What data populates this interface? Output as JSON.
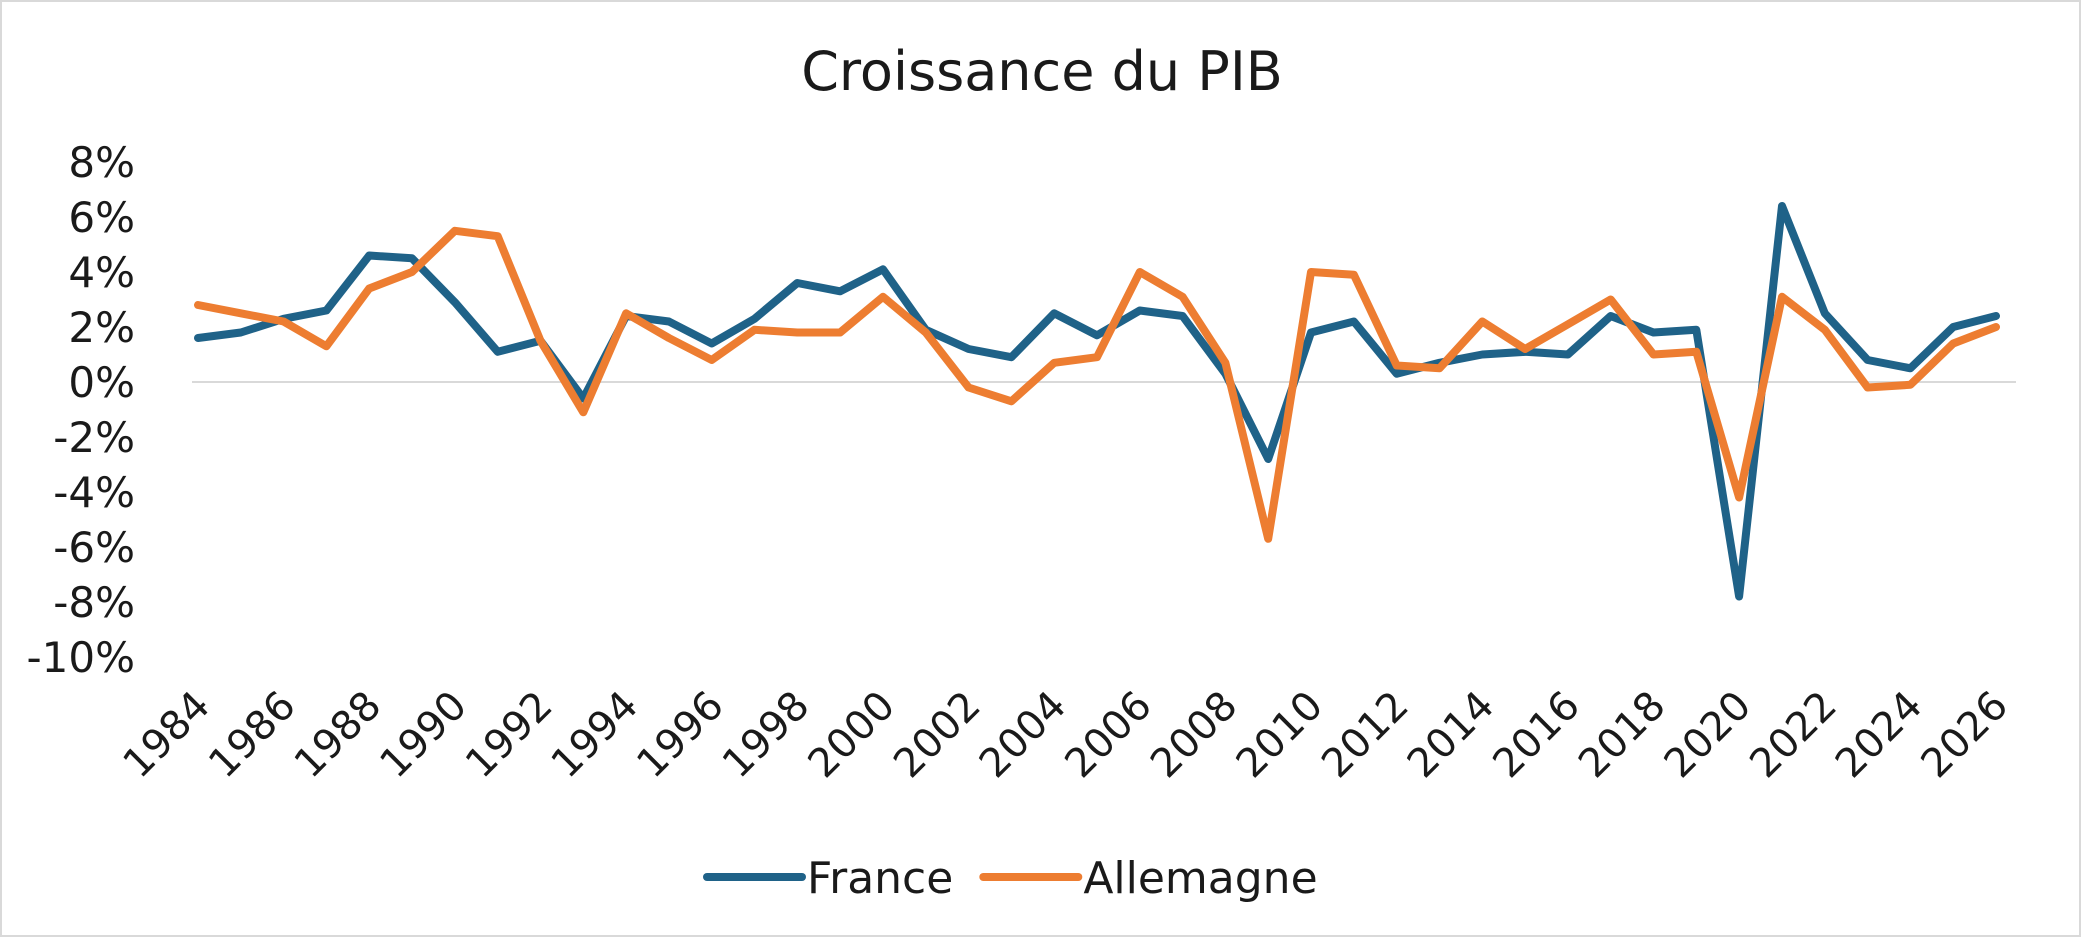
{
  "chart_data": {
    "type": "line",
    "title": "Croissance du PIB",
    "xlabel": "",
    "ylabel": "",
    "x": [
      1984,
      1985,
      1986,
      1987,
      1988,
      1989,
      1990,
      1991,
      1992,
      1993,
      1994,
      1995,
      1996,
      1997,
      1998,
      1999,
      2000,
      2001,
      2002,
      2003,
      2004,
      2005,
      2006,
      2007,
      2008,
      2009,
      2010,
      2011,
      2012,
      2013,
      2014,
      2015,
      2016,
      2017,
      2018,
      2019,
      2020,
      2021,
      2022,
      2023,
      2024,
      2025,
      2026
    ],
    "x_tick_labels": [
      "1984",
      "1986",
      "1988",
      "1990",
      "1992",
      "1994",
      "1996",
      "1998",
      "2000",
      "2002",
      "2004",
      "2006",
      "2008",
      "2010",
      "2012",
      "2014",
      "2016",
      "2018",
      "2020",
      "2022",
      "2024",
      "2026"
    ],
    "y_tick_labels": [
      "8%",
      "6%",
      "4%",
      "2%",
      "0%",
      "-2%",
      "-4%",
      "-6%",
      "-8%",
      "-10%"
    ],
    "y_ticks": [
      8,
      6,
      4,
      2,
      0,
      -2,
      -4,
      -6,
      -8,
      -10
    ],
    "ylim": [
      -10,
      8
    ],
    "xlim": [
      1984,
      2026
    ],
    "grid": false,
    "zero_line": true,
    "legend_position": "bottom",
    "series": [
      {
        "name": "France",
        "color": "#1f6288",
        "values": [
          1.6,
          1.8,
          2.3,
          2.6,
          4.6,
          4.5,
          2.9,
          1.1,
          1.5,
          -0.6,
          2.4,
          2.2,
          1.4,
          2.3,
          3.6,
          3.3,
          4.1,
          1.9,
          1.2,
          0.9,
          2.5,
          1.7,
          2.6,
          2.4,
          0.3,
          -2.8,
          1.8,
          2.2,
          0.3,
          0.7,
          1.0,
          1.1,
          1.0,
          2.4,
          1.8,
          1.9,
          -7.8,
          6.4,
          2.5,
          0.8,
          0.5,
          2.0,
          2.4
        ]
      },
      {
        "name": "Allemagne",
        "color": "#ed7d31",
        "values": [
          2.8,
          2.5,
          2.2,
          1.3,
          3.4,
          4.0,
          5.5,
          5.3,
          1.5,
          -1.1,
          2.5,
          1.6,
          0.8,
          1.9,
          1.8,
          1.8,
          3.1,
          1.8,
          -0.2,
          -0.7,
          0.7,
          0.9,
          4.0,
          3.1,
          0.7,
          -5.7,
          4.0,
          3.9,
          0.6,
          0.5,
          2.2,
          1.2,
          2.1,
          3.0,
          1.0,
          1.1,
          -4.2,
          3.1,
          1.9,
          -0.2,
          -0.1,
          1.4,
          2.0
        ]
      }
    ]
  }
}
